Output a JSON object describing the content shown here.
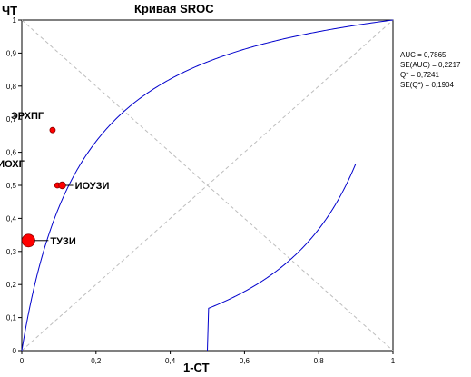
{
  "chart_data": {
    "type": "scatter",
    "title": "Кривая SROC",
    "xlabel": "1-СТ",
    "ylabel": "ЧТ",
    "xlim": [
      0,
      1
    ],
    "ylim": [
      0,
      1
    ],
    "x_ticks": [
      "0",
      "0,2",
      "0,4",
      "0,6",
      "0,8",
      "1"
    ],
    "y_ticks": [
      "0",
      "0,1",
      "0,2",
      "0,3",
      "0,4",
      "0,5",
      "0,6",
      "0,7",
      "0,8",
      "0,9",
      "1"
    ],
    "grid": "diagonal dashed lines",
    "stats": [
      "AUC = 0,7865",
      "SE(AUC) = 0,2217",
      "Q* = 0,7241",
      "SE(Q*) = 0,1904"
    ],
    "curve": {
      "color": "#0000cc",
      "model": "SROC",
      "q_star": 0.7241
    },
    "studies": [
      {
        "label": "ЭРХПГ",
        "x": 0.083,
        "y": 0.667,
        "weight": 1.0
      },
      {
        "label": "ИОХГ",
        "x": 0.096,
        "y": 0.5,
        "weight": 1.0
      },
      {
        "label": "ИОУЗИ",
        "x": 0.109,
        "y": 0.5,
        "weight": 1.3
      },
      {
        "label": "ТУЗИ",
        "x": 0.018,
        "y": 0.333,
        "weight": 2.5
      }
    ],
    "point_color": "#ff0000"
  }
}
